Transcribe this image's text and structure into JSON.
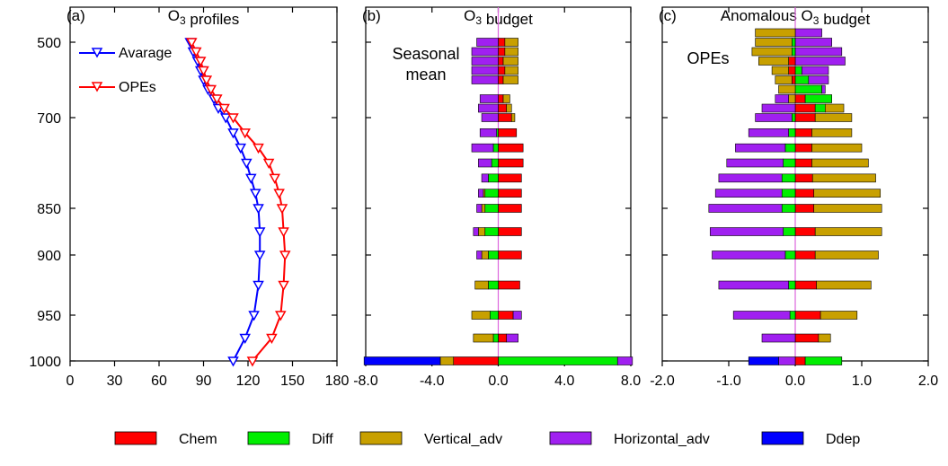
{
  "colors": {
    "chem": "#ff0000",
    "diff": "#00ee00",
    "vertical_adv": "#c8a000",
    "horizontal_adv": "#a020f0",
    "ddep": "#0000ff",
    "average": "#0000ff",
    "opes": "#ff0000",
    "zero_line": "#dd66dd"
  },
  "chart_data": [
    {
      "type": "line",
      "panel_label": "(a)",
      "title": "O₃ profiles",
      "xlim": [
        0,
        180
      ],
      "x_ticks": [
        "0",
        "30",
        "60",
        "90",
        "120",
        "150",
        "180"
      ],
      "y_ticks": [
        "500",
        "700",
        "850",
        "900",
        "950",
        "1000"
      ],
      "y_levels": [
        1000,
        975,
        950,
        925,
        900,
        875,
        850,
        825,
        800,
        775,
        750,
        725,
        700,
        675,
        650,
        625,
        600,
        575,
        550,
        525,
        500
      ],
      "series": [
        {
          "name": "Avarage",
          "color_key": "average",
          "values": [
            110,
            118,
            124,
            127,
            128,
            128,
            127,
            125,
            122,
            119,
            115,
            110,
            105,
            100,
            97,
            93,
            90,
            88,
            86,
            83,
            81
          ]
        },
        {
          "name": "OPEs",
          "color_key": "opes",
          "values": [
            123,
            136,
            142,
            144,
            145,
            144,
            143,
            141,
            138,
            134,
            127,
            118,
            110,
            104,
            99,
            95,
            92,
            90,
            88,
            85,
            82
          ]
        }
      ]
    },
    {
      "type": "bar",
      "orientation": "horizontal-stacked",
      "panel_label": "(b)",
      "title": "O₃ budget",
      "annotation": [
        "Seasonal",
        "mean"
      ],
      "xlim": [
        -9,
        9
      ],
      "x_ticks": [
        "-8.0",
        "-4.0",
        "0.0",
        "4.0",
        "8.0"
      ],
      "components": [
        "Chem",
        "Diff",
        "Vertical_adv",
        "Horizontal_adv",
        "Ddep"
      ],
      "rows": [
        {
          "level": 1000,
          "pos": {
            "Diff": 7.2,
            "Horizontal_adv": 0.9
          },
          "neg": {
            "Chem": -2.7,
            "Vertical_adv": -0.8,
            "Ddep": -4.6
          }
        },
        {
          "level": 975,
          "pos": {
            "Chem": 0.5,
            "Horizontal_adv": 0.7
          },
          "neg": {
            "Diff": -0.3,
            "Vertical_adv": -1.2
          }
        },
        {
          "level": 950,
          "pos": {
            "Chem": 0.9,
            "Horizontal_adv": 0.5
          },
          "neg": {
            "Diff": -0.5,
            "Vertical_adv": -1.1
          }
        },
        {
          "level": 925,
          "pos": {
            "Chem": 1.3
          },
          "neg": {
            "Diff": -0.6,
            "Vertical_adv": -0.8
          }
        },
        {
          "level": 900,
          "pos": {
            "Chem": 1.4
          },
          "neg": {
            "Diff": -0.6,
            "Vertical_adv": -0.4,
            "Horizontal_adv": -0.3
          }
        },
        {
          "level": 875,
          "pos": {
            "Chem": 1.4
          },
          "neg": {
            "Diff": -0.8,
            "Vertical_adv": -0.4,
            "Horizontal_adv": -0.3
          }
        },
        {
          "level": 850,
          "pos": {
            "Chem": 1.4
          },
          "neg": {
            "Diff": -0.8,
            "Vertical_adv": -0.2,
            "Horizontal_adv": -0.3
          }
        },
        {
          "level": 825,
          "pos": {
            "Chem": 1.4
          },
          "neg": {
            "Diff": -0.8,
            "Vertical_adv": -0.1,
            "Horizontal_adv": -0.3
          }
        },
        {
          "level": 800,
          "pos": {
            "Chem": 1.4
          },
          "neg": {
            "Diff": -0.6,
            "Horizontal_adv": -0.4
          }
        },
        {
          "level": 775,
          "pos": {
            "Chem": 1.5
          },
          "neg": {
            "Diff": -0.4,
            "Horizontal_adv": -0.8
          }
        },
        {
          "level": 750,
          "pos": {
            "Chem": 1.5
          },
          "neg": {
            "Diff": -0.3,
            "Horizontal_adv": -1.3
          }
        },
        {
          "level": 725,
          "pos": {
            "Chem": 1.1
          },
          "neg": {
            "Diff": -0.1,
            "Horizontal_adv": -1.0
          }
        },
        {
          "level": 700,
          "pos": {
            "Chem": 0.8,
            "Vertical_adv": 0.2
          },
          "neg": {
            "Horizontal_adv": -1.0
          }
        },
        {
          "level": 675,
          "pos": {
            "Chem": 0.5,
            "Vertical_adv": 0.3
          },
          "neg": {
            "Horizontal_adv": -1.2
          }
        },
        {
          "level": 650,
          "pos": {
            "Chem": 0.3,
            "Vertical_adv": 0.4
          },
          "neg": {
            "Horizontal_adv": -1.1
          }
        },
        {
          "level": 600,
          "pos": {
            "Chem": 0.3,
            "Vertical_adv": 0.9
          },
          "neg": {
            "Horizontal_adv": -1.6
          }
        },
        {
          "level": 575,
          "pos": {
            "Chem": 0.4,
            "Vertical_adv": 0.8
          },
          "neg": {
            "Horizontal_adv": -1.6
          }
        },
        {
          "level": 550,
          "pos": {
            "Chem": 0.3,
            "Vertical_adv": 0.9
          },
          "neg": {
            "Horizontal_adv": -1.6
          }
        },
        {
          "level": 525,
          "pos": {
            "Chem": 0.4,
            "Vertical_adv": 0.8
          },
          "neg": {
            "Horizontal_adv": -1.6
          }
        },
        {
          "level": 500,
          "pos": {
            "Chem": 0.4,
            "Vertical_adv": 0.8
          },
          "neg": {
            "Horizontal_adv": -1.3
          }
        }
      ]
    },
    {
      "type": "bar",
      "orientation": "horizontal-stacked",
      "panel_label": "(c)",
      "title": "Anomalous O₃ budget",
      "annotation": [
        "OPEs"
      ],
      "xlim": [
        -2,
        2
      ],
      "x_ticks": [
        "-2.0",
        "-1.0",
        "0.0",
        "1.0",
        "2.0"
      ],
      "components": [
        "Chem",
        "Diff",
        "Vertical_adv",
        "Horizontal_adv",
        "Ddep"
      ],
      "rows": [
        {
          "level": 1000,
          "pos": {
            "Chem": 0.15,
            "Diff": 0.55
          },
          "neg": {
            "Horizontal_adv": -0.25,
            "Ddep": -0.45
          }
        },
        {
          "level": 975,
          "pos": {
            "Chem": 0.35,
            "Vertical_adv": 0.18
          },
          "neg": {
            "Horizontal_adv": -0.5
          }
        },
        {
          "level": 950,
          "pos": {
            "Chem": 0.38,
            "Vertical_adv": 0.55
          },
          "neg": {
            "Diff": -0.08,
            "Horizontal_adv": -0.85
          }
        },
        {
          "level": 925,
          "pos": {
            "Chem": 0.32,
            "Vertical_adv": 0.82
          },
          "neg": {
            "Diff": -0.1,
            "Horizontal_adv": -1.05
          }
        },
        {
          "level": 900,
          "pos": {
            "Chem": 0.3,
            "Vertical_adv": 0.95
          },
          "neg": {
            "Diff": -0.15,
            "Horizontal_adv": -1.1
          }
        },
        {
          "level": 875,
          "pos": {
            "Chem": 0.3,
            "Vertical_adv": 1.0
          },
          "neg": {
            "Diff": -0.18,
            "Horizontal_adv": -1.1
          }
        },
        {
          "level": 850,
          "pos": {
            "Chem": 0.28,
            "Vertical_adv": 1.02
          },
          "neg": {
            "Diff": -0.2,
            "Horizontal_adv": -1.1
          }
        },
        {
          "level": 825,
          "pos": {
            "Chem": 0.28,
            "Vertical_adv": 1.0
          },
          "neg": {
            "Diff": -0.2,
            "Horizontal_adv": -1.0
          }
        },
        {
          "level": 800,
          "pos": {
            "Chem": 0.26,
            "Vertical_adv": 0.95
          },
          "neg": {
            "Diff": -0.2,
            "Horizontal_adv": -0.95
          }
        },
        {
          "level": 775,
          "pos": {
            "Chem": 0.25,
            "Vertical_adv": 0.85
          },
          "neg": {
            "Diff": -0.18,
            "Horizontal_adv": -0.85
          }
        },
        {
          "level": 750,
          "pos": {
            "Chem": 0.25,
            "Vertical_adv": 0.75
          },
          "neg": {
            "Diff": -0.15,
            "Horizontal_adv": -0.75
          }
        },
        {
          "level": 725,
          "pos": {
            "Chem": 0.25,
            "Vertical_adv": 0.6
          },
          "neg": {
            "Diff": -0.1,
            "Horizontal_adv": -0.6
          }
        },
        {
          "level": 700,
          "pos": {
            "Chem": 0.3,
            "Vertical_adv": 0.55
          },
          "neg": {
            "Diff": -0.05,
            "Horizontal_adv": -0.55
          }
        },
        {
          "level": 675,
          "pos": {
            "Chem": 0.3,
            "Diff": 0.15,
            "Vertical_adv": 0.28
          },
          "neg": {
            "Horizontal_adv": -0.5
          }
        },
        {
          "level": 650,
          "pos": {
            "Chem": 0.15,
            "Diff": 0.4
          },
          "neg": {
            "Vertical_adv": -0.1,
            "Horizontal_adv": -0.2
          }
        },
        {
          "level": 625,
          "pos": {
            "Diff": 0.4,
            "Horizontal_adv": 0.05
          },
          "neg": {
            "Vertical_adv": -0.25
          }
        },
        {
          "level": 600,
          "pos": {
            "Diff": 0.2,
            "Horizontal_adv": 0.3
          },
          "neg": {
            "Chem": -0.05,
            "Vertical_adv": -0.25
          }
        },
        {
          "level": 575,
          "pos": {
            "Diff": 0.1,
            "Horizontal_adv": 0.4
          },
          "neg": {
            "Chem": -0.1,
            "Vertical_adv": -0.25
          }
        },
        {
          "level": 550,
          "pos": {
            "Horizontal_adv": 0.75
          },
          "neg": {
            "Chem": -0.1,
            "Vertical_adv": -0.45
          }
        },
        {
          "level": 525,
          "pos": {
            "Horizontal_adv": 0.7
          },
          "neg": {
            "Diff": -0.05,
            "Vertical_adv": -0.6
          }
        },
        {
          "level": 500,
          "pos": {
            "Horizontal_adv": 0.55
          },
          "neg": {
            "Diff": -0.05,
            "Vertical_adv": -0.55
          }
        },
        {
          "level": 475,
          "pos": {
            "Horizontal_adv": 0.4
          },
          "neg": {
            "Vertical_adv": -0.6
          }
        }
      ]
    }
  ],
  "legend": [
    {
      "label": "Chem",
      "color_key": "chem"
    },
    {
      "label": "Diff",
      "color_key": "diff"
    },
    {
      "label": "Vertical_adv",
      "color_key": "vertical_adv"
    },
    {
      "label": "Horizontal_adv",
      "color_key": "horizontal_adv"
    },
    {
      "label": "Ddep",
      "color_key": "ddep"
    }
  ]
}
